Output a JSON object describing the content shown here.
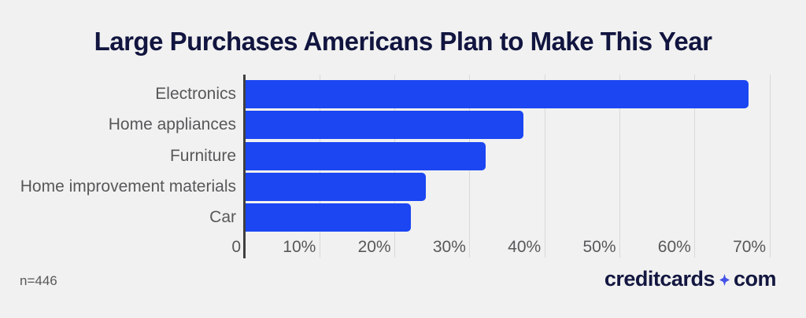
{
  "title": "Large Purchases Americans Plan to Make This Year",
  "footnote": "n=446",
  "logo": {
    "part1": "creditcards",
    "part2": "com",
    "separator_icon": "sparkle-icon"
  },
  "colors": {
    "background": "#f1f1f1",
    "bar": "#1b46f2",
    "title": "#11153f",
    "labels": "#58585a",
    "gridline": "#d9d9d9",
    "axis_line": "#3f3f3f",
    "logo_text": "#131740",
    "sparkle": "#4353e8"
  },
  "chart_data": {
    "type": "bar",
    "orientation": "horizontal",
    "title": "Large Purchases Americans Plan to Make This Year",
    "categories": [
      "Electronics",
      "Home appliances",
      "Furniture",
      "Home improvement materials",
      "Car"
    ],
    "values": [
      67,
      37,
      32,
      24,
      22
    ],
    "unit": "%",
    "xlabel": "",
    "ylabel": "",
    "xlim": [
      0,
      75
    ],
    "xticks": [
      0,
      10,
      20,
      30,
      40,
      50,
      60,
      70
    ],
    "xtick_labels": [
      "0",
      "10%",
      "20%",
      "30%",
      "40%",
      "50%",
      "60%",
      "70%"
    ],
    "grid": true,
    "legend": false,
    "sample_size": "n=446",
    "source": "creditcards com"
  }
}
